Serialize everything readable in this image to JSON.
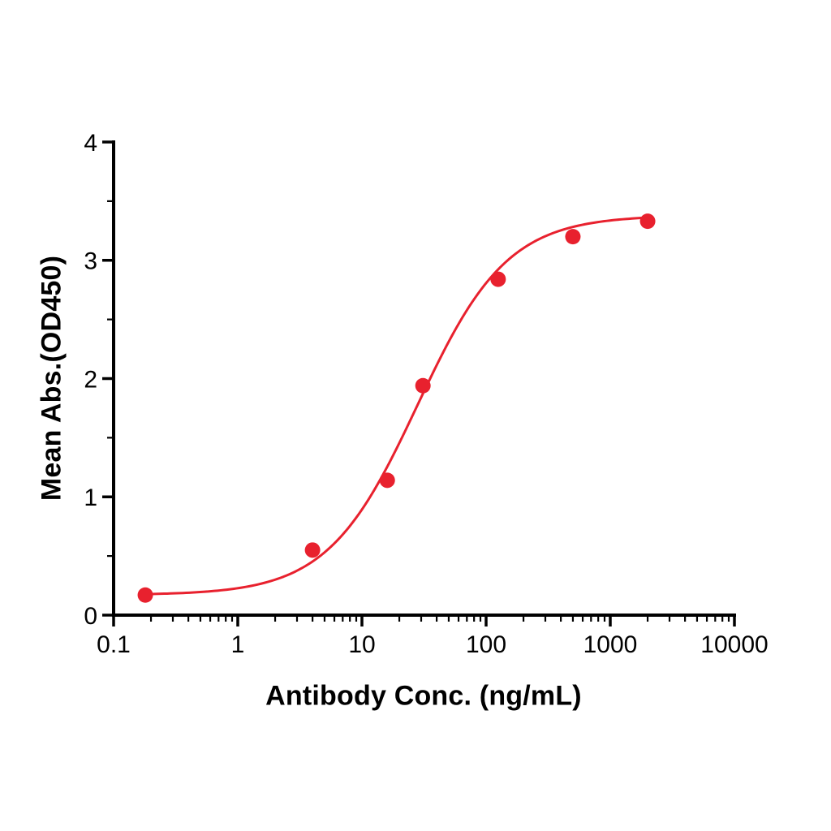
{
  "page": {
    "background": "#ffffff"
  },
  "chart_data": {
    "type": "scatter",
    "title": "",
    "xlabel": "Antibody Conc. (ng/mL)",
    "ylabel": "Mean Abs.(OD450)",
    "x_scale": "log",
    "y_scale": "linear",
    "xlim": [
      0.1,
      10000
    ],
    "ylim": [
      0,
      4
    ],
    "grid": false,
    "legend": "none",
    "axis_color": "#000000",
    "xticks": {
      "values": [
        0.1,
        1,
        10,
        100,
        1000,
        10000
      ],
      "labels": [
        "0.1",
        "1",
        "10",
        "100",
        "1000",
        "10000"
      ]
    },
    "yticks": {
      "values": [
        0,
        1,
        2,
        3,
        4
      ],
      "labels": [
        "0",
        "1",
        "2",
        "3",
        "4"
      ]
    },
    "y_minor_step": 0.5,
    "x_minor_log_subdivisions": true,
    "series": [
      {
        "name": "Mean Abs.(OD450)",
        "color": "#e8212e",
        "marker": "circle",
        "marker_size": 9.5,
        "line_width": 3,
        "points": [
          {
            "x": 0.18,
            "y": 0.17
          },
          {
            "x": 4,
            "y": 0.55
          },
          {
            "x": 16,
            "y": 1.14
          },
          {
            "x": 31,
            "y": 1.94
          },
          {
            "x": 125,
            "y": 2.84
          },
          {
            "x": 500,
            "y": 3.2
          },
          {
            "x": 2000,
            "y": 3.33
          }
        ],
        "fit_curve": {
          "model": "4PL",
          "bottom": 0.17,
          "top": 3.38,
          "ec50": 28,
          "hill": 1.2,
          "x_start": 0.18,
          "x_end": 2000
        }
      }
    ]
  }
}
